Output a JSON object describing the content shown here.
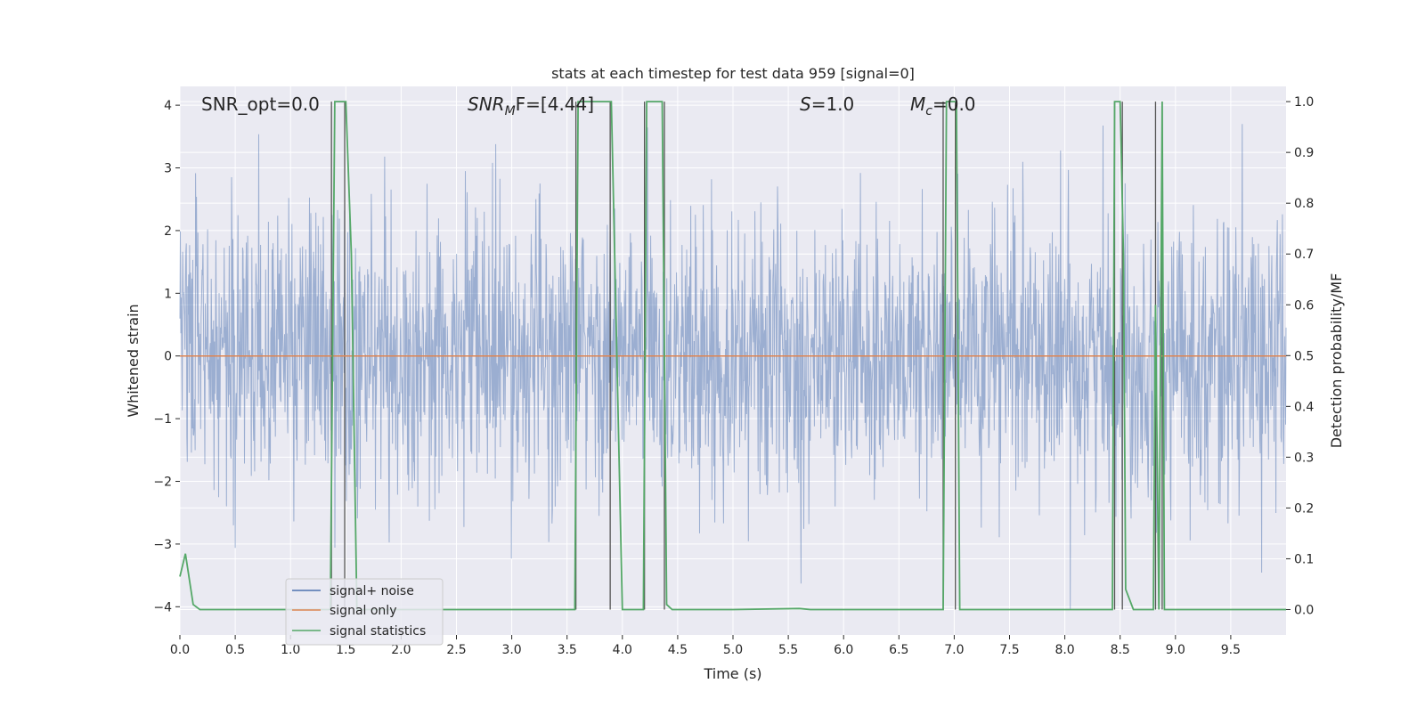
{
  "chart_data": {
    "type": "line",
    "title": "stats at each timestep for test data 959 [signal=0]",
    "xlabel": "Time (s)",
    "ylabel": "Whitened strain",
    "y2label": "Detection probability/MF",
    "xlim": [
      0,
      10
    ],
    "ylim": [
      -4.45,
      4.3
    ],
    "y2lim": [
      -0.05,
      1.03
    ],
    "grid": true,
    "legend_position": "lower-left",
    "background_color": "#eaeaf2",
    "x_ticks": [
      "0.0",
      "0.5",
      "1.0",
      "1.5",
      "2.0",
      "2.5",
      "3.0",
      "3.5",
      "4.0",
      "4.5",
      "5.0",
      "5.5",
      "6.0",
      "6.5",
      "7.0",
      "7.5",
      "8.0",
      "8.5",
      "9.0",
      "9.5"
    ],
    "y_ticks": [
      "4",
      "3",
      "2",
      "1",
      "0",
      "−1",
      "−2",
      "−3",
      "−4"
    ],
    "y2_ticks": [
      "1.0",
      "0.9",
      "0.8",
      "0.7",
      "0.6",
      "0.5",
      "0.4",
      "0.3",
      "0.2",
      "0.1",
      "0.0"
    ],
    "annotations": {
      "snr_opt": "SNR_opt=0.0",
      "snr_mf_main": "SNR",
      "snr_mf_sub": "M",
      "snr_mf_rest": "F=[4.44]",
      "s_italic": "S",
      "s_rest": "=1.0",
      "mc_main": "M",
      "mc_sub": "c",
      "mc_rest": "=0.0"
    },
    "series": [
      {
        "name": "signal+ noise",
        "color": "#4c72b0",
        "axis": "left",
        "description": "whitened noise, approx. Gaussian, amplitude mostly within ±3, extremes to about +3.7 / -4.0"
      },
      {
        "name": "signal only",
        "color": "#dd8452",
        "axis": "left",
        "x": [
          0,
          10
        ],
        "y": [
          0,
          0
        ]
      },
      {
        "name": "signal statistics",
        "color": "#55a868",
        "axis": "right",
        "x": [
          0.0,
          0.05,
          0.12,
          0.18,
          0.5,
          1.0,
          1.36,
          1.4,
          1.44,
          1.5,
          1.55,
          1.6,
          1.65,
          2.0,
          3.0,
          3.57,
          3.6,
          3.65,
          3.9,
          3.92,
          3.98,
          4.0,
          4.19,
          4.22,
          4.25,
          4.36,
          4.4,
          4.45,
          5.0,
          5.6,
          5.7,
          6.0,
          6.9,
          6.93,
          6.97,
          7.02,
          7.05,
          7.5,
          8.0,
          8.43,
          8.45,
          8.5,
          8.53,
          8.55,
          8.62,
          8.8,
          8.82,
          8.85,
          8.88,
          8.9,
          9.0,
          10.0
        ],
        "y": [
          0.065,
          0.11,
          0.01,
          0.0,
          0.0,
          0.0,
          0.0,
          1.0,
          1.0,
          1.0,
          0.7,
          0.0,
          0.0,
          0.0,
          0.0,
          0.0,
          1.0,
          1.0,
          1.0,
          0.8,
          0.2,
          0.0,
          0.0,
          1.0,
          1.0,
          1.0,
          0.01,
          0.0,
          0.0,
          0.002,
          0.0,
          0.0,
          0.0,
          1.0,
          1.0,
          1.0,
          0.0,
          0.0,
          0.0,
          0.0,
          1.0,
          1.0,
          0.7,
          0.04,
          0.0,
          0.0,
          0.6,
          0.0,
          1.0,
          0.0,
          0.0,
          0.0
        ]
      }
    ],
    "vertical_markers": {
      "color": "#555555",
      "x": [
        1.37,
        1.49,
        3.58,
        3.89,
        4.2,
        4.38,
        6.9,
        7.01,
        8.45,
        8.52,
        8.82,
        8.88
      ]
    }
  },
  "legend": [
    {
      "label": "signal+ noise",
      "color": "#4c72b0"
    },
    {
      "label": "signal only",
      "color": "#dd8452"
    },
    {
      "label": "signal statistics",
      "color": "#55a868"
    }
  ]
}
